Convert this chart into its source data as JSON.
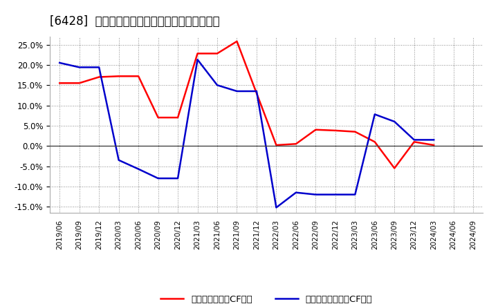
{
  "title": "[6428]  有利子負債キャッシュフロー比率の推移",
  "x_labels": [
    "2019/06",
    "2019/09",
    "2019/12",
    "2020/03",
    "2020/06",
    "2020/09",
    "2020/12",
    "2021/03",
    "2021/06",
    "2021/09",
    "2021/12",
    "2022/03",
    "2022/06",
    "2022/09",
    "2022/12",
    "2023/03",
    "2023/06",
    "2023/09",
    "2023/12",
    "2024/03",
    "2024/06",
    "2024/09"
  ],
  "red_series": {
    "label": "有利子負債営業CF比率",
    "color": "#ff0000",
    "values": [
      0.155,
      0.155,
      0.17,
      0.172,
      0.172,
      0.07,
      0.07,
      0.228,
      0.228,
      0.258,
      0.13,
      0.002,
      0.005,
      0.04,
      0.038,
      0.035,
      0.01,
      -0.055,
      0.01,
      0.002,
      null,
      null
    ]
  },
  "blue_series": {
    "label": "有利子負債フリーCF比率",
    "color": "#0000cc",
    "values": [
      0.205,
      0.194,
      0.194,
      -0.035,
      -0.057,
      -0.08,
      -0.08,
      0.213,
      0.15,
      0.135,
      0.135,
      -0.152,
      -0.115,
      -0.12,
      -0.12,
      -0.12,
      0.078,
      0.06,
      0.015,
      0.015,
      null,
      null
    ]
  },
  "ylim": [
    -0.165,
    0.27
  ],
  "yticks": [
    -0.15,
    -0.1,
    -0.05,
    0.0,
    0.05,
    0.1,
    0.15,
    0.2,
    0.25
  ],
  "background_color": "#ffffff",
  "grid_color": "#888888",
  "zero_line_color": "#444444",
  "title_fontsize": 12,
  "legend_fontsize": 9.5
}
